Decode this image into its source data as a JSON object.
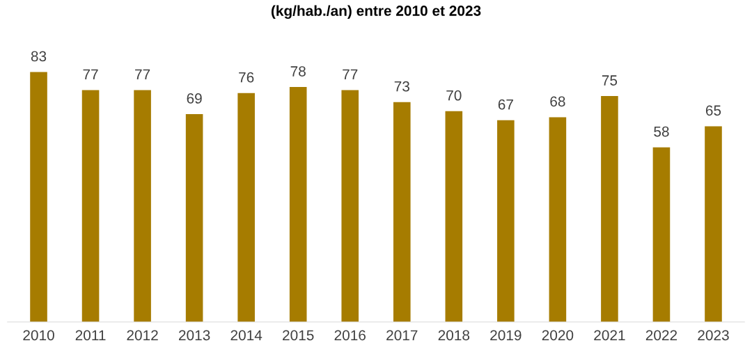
{
  "chart_data": {
    "type": "bar",
    "title": "(kg/hab./an) entre 2010 et 2023",
    "categories": [
      "2010",
      "2011",
      "2012",
      "2013",
      "2014",
      "2015",
      "2016",
      "2017",
      "2018",
      "2019",
      "2020",
      "2021",
      "2022",
      "2023"
    ],
    "values": [
      83,
      77,
      77,
      69,
      76,
      78,
      77,
      73,
      70,
      67,
      68,
      75,
      58,
      65
    ],
    "color": "#a67c00",
    "data_labels": true,
    "grid": false,
    "tick_labels": "x"
  }
}
